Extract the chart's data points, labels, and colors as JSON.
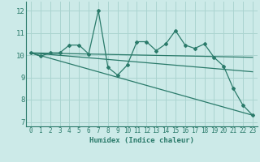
{
  "xlabel": "Humidex (Indice chaleur)",
  "background_color": "#cceae8",
  "grid_color": "#aad4d0",
  "line_color": "#2a7a6a",
  "xlim": [
    -0.5,
    23.5
  ],
  "ylim": [
    6.8,
    12.4
  ],
  "yticks": [
    7,
    8,
    9,
    10,
    11,
    12
  ],
  "xticks": [
    0,
    1,
    2,
    3,
    4,
    5,
    6,
    7,
    8,
    9,
    10,
    11,
    12,
    13,
    14,
    15,
    16,
    17,
    18,
    19,
    20,
    21,
    22,
    23
  ],
  "series1_x": [
    0,
    1,
    2,
    3,
    4,
    5,
    6,
    7,
    8,
    9,
    10,
    11,
    12,
    13,
    14,
    15,
    16,
    17,
    18,
    19,
    20,
    21,
    22,
    23
  ],
  "series1_y": [
    10.1,
    9.95,
    10.1,
    10.1,
    10.45,
    10.45,
    10.05,
    12.0,
    9.45,
    9.1,
    9.55,
    10.6,
    10.6,
    10.2,
    10.5,
    11.1,
    10.45,
    10.3,
    10.5,
    9.9,
    9.5,
    8.5,
    7.75,
    7.3
  ],
  "series2_x": [
    0,
    23
  ],
  "series2_y": [
    10.1,
    9.9
  ],
  "series3_x": [
    0,
    23
  ],
  "series3_y": [
    10.1,
    9.25
  ],
  "series4_x": [
    0,
    23
  ],
  "series4_y": [
    10.1,
    7.3
  ]
}
